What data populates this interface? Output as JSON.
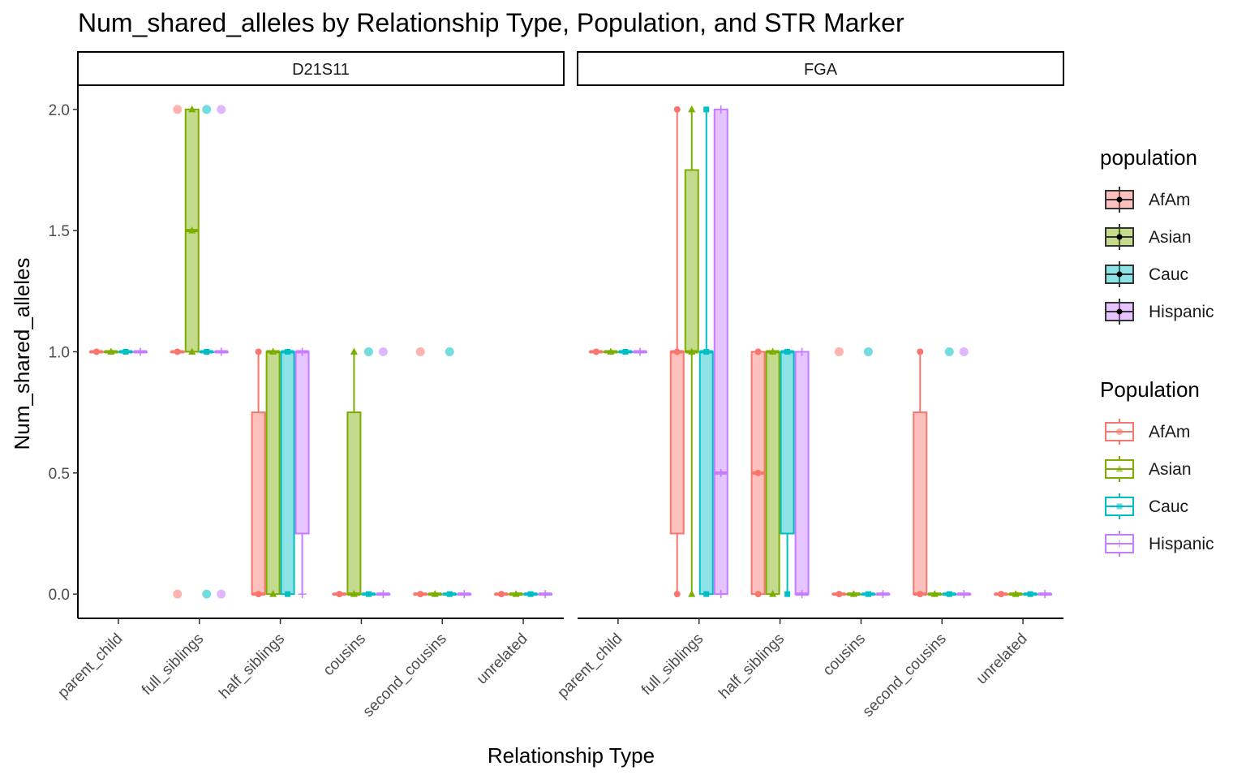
{
  "chart_data": {
    "type": "boxplot",
    "title": "Num_shared_alleles by Relationship Type, Population, and STR Marker",
    "xlabel": "Relationship Type",
    "ylabel": "Num_shared_alleles",
    "ylim": [
      -0.1,
      2.1
    ],
    "y_ticks": [
      "0.0",
      "0.5",
      "1.0",
      "1.5",
      "2.0"
    ],
    "categories": [
      "parent_child",
      "full_siblings",
      "half_siblings",
      "cousins",
      "second_cousins",
      "unrelated"
    ],
    "groups": [
      "AfAm",
      "Asian",
      "Cauc",
      "Hispanic"
    ],
    "colors": {
      "AfAm": "#F8766D",
      "Asian": "#7CAE00",
      "Cauc": "#00BFC4",
      "Hispanic": "#C77CFF"
    },
    "point_shapes": {
      "AfAm": "circle",
      "Asian": "triangle",
      "Cauc": "square",
      "Hispanic": "plus"
    },
    "legend_position": "right",
    "legends": [
      {
        "title": "population",
        "items": [
          "AfAm",
          "Asian",
          "Cauc",
          "Hispanic"
        ],
        "style": "fill"
      },
      {
        "title": "Population",
        "items": [
          "AfAm",
          "Asian",
          "Cauc",
          "Hispanic"
        ],
        "style": "color"
      }
    ],
    "panels": [
      {
        "label": "D21S11",
        "boxes": [
          {
            "category": "parent_child",
            "group": "AfAm",
            "min": 1,
            "q1": 1,
            "median": 1,
            "q3": 1,
            "max": 1,
            "outliers": []
          },
          {
            "category": "parent_child",
            "group": "Asian",
            "min": 1,
            "q1": 1,
            "median": 1,
            "q3": 1,
            "max": 1,
            "outliers": []
          },
          {
            "category": "parent_child",
            "group": "Cauc",
            "min": 1,
            "q1": 1,
            "median": 1,
            "q3": 1,
            "max": 1,
            "outliers": []
          },
          {
            "category": "parent_child",
            "group": "Hispanic",
            "min": 1,
            "q1": 1,
            "median": 1,
            "q3": 1,
            "max": 1,
            "outliers": []
          },
          {
            "category": "full_siblings",
            "group": "AfAm",
            "min": 1,
            "q1": 1,
            "median": 1,
            "q3": 1,
            "max": 1,
            "outliers": [
              2,
              0
            ]
          },
          {
            "category": "full_siblings",
            "group": "Asian",
            "min": 1,
            "q1": 1,
            "median": 1.5,
            "q3": 2,
            "max": 2,
            "outliers": []
          },
          {
            "category": "full_siblings",
            "group": "Cauc",
            "min": 1,
            "q1": 1,
            "median": 1,
            "q3": 1,
            "max": 1,
            "outliers": [
              2,
              0
            ]
          },
          {
            "category": "full_siblings",
            "group": "Hispanic",
            "min": 1,
            "q1": 1,
            "median": 1,
            "q3": 1,
            "max": 1,
            "outliers": [
              2,
              0
            ]
          },
          {
            "category": "half_siblings",
            "group": "AfAm",
            "min": 0,
            "q1": 0,
            "median": 0,
            "q3": 0.75,
            "max": 1,
            "outliers": []
          },
          {
            "category": "half_siblings",
            "group": "Asian",
            "min": 0,
            "q1": 0,
            "median": 1,
            "q3": 1,
            "max": 1,
            "outliers": []
          },
          {
            "category": "half_siblings",
            "group": "Cauc",
            "min": 0,
            "q1": 0,
            "median": 1,
            "q3": 1,
            "max": 1,
            "outliers": []
          },
          {
            "category": "half_siblings",
            "group": "Hispanic",
            "min": 0,
            "q1": 0.25,
            "median": 1,
            "q3": 1,
            "max": 1,
            "outliers": []
          },
          {
            "category": "cousins",
            "group": "AfAm",
            "min": 0,
            "q1": 0,
            "median": 0,
            "q3": 0,
            "max": 0,
            "outliers": []
          },
          {
            "category": "cousins",
            "group": "Asian",
            "min": 0,
            "q1": 0,
            "median": 0,
            "q3": 0.75,
            "max": 1,
            "outliers": []
          },
          {
            "category": "cousins",
            "group": "Cauc",
            "min": 0,
            "q1": 0,
            "median": 0,
            "q3": 0,
            "max": 0,
            "outliers": [
              1
            ]
          },
          {
            "category": "cousins",
            "group": "Hispanic",
            "min": 0,
            "q1": 0,
            "median": 0,
            "q3": 0,
            "max": 0,
            "outliers": [
              1
            ]
          },
          {
            "category": "second_cousins",
            "group": "AfAm",
            "min": 0,
            "q1": 0,
            "median": 0,
            "q3": 0,
            "max": 0,
            "outliers": [
              1
            ]
          },
          {
            "category": "second_cousins",
            "group": "Asian",
            "min": 0,
            "q1": 0,
            "median": 0,
            "q3": 0,
            "max": 0,
            "outliers": []
          },
          {
            "category": "second_cousins",
            "group": "Cauc",
            "min": 0,
            "q1": 0,
            "median": 0,
            "q3": 0,
            "max": 0,
            "outliers": [
              1
            ]
          },
          {
            "category": "second_cousins",
            "group": "Hispanic",
            "min": 0,
            "q1": 0,
            "median": 0,
            "q3": 0,
            "max": 0,
            "outliers": []
          },
          {
            "category": "unrelated",
            "group": "AfAm",
            "min": 0,
            "q1": 0,
            "median": 0,
            "q3": 0,
            "max": 0,
            "outliers": []
          },
          {
            "category": "unrelated",
            "group": "Asian",
            "min": 0,
            "q1": 0,
            "median": 0,
            "q3": 0,
            "max": 0,
            "outliers": []
          },
          {
            "category": "unrelated",
            "group": "Cauc",
            "min": 0,
            "q1": 0,
            "median": 0,
            "q3": 0,
            "max": 0,
            "outliers": []
          },
          {
            "category": "unrelated",
            "group": "Hispanic",
            "min": 0,
            "q1": 0,
            "median": 0,
            "q3": 0,
            "max": 0,
            "outliers": []
          }
        ]
      },
      {
        "label": "FGA",
        "boxes": [
          {
            "category": "parent_child",
            "group": "AfAm",
            "min": 1,
            "q1": 1,
            "median": 1,
            "q3": 1,
            "max": 1,
            "outliers": []
          },
          {
            "category": "parent_child",
            "group": "Asian",
            "min": 1,
            "q1": 1,
            "median": 1,
            "q3": 1,
            "max": 1,
            "outliers": []
          },
          {
            "category": "parent_child",
            "group": "Cauc",
            "min": 1,
            "q1": 1,
            "median": 1,
            "q3": 1,
            "max": 1,
            "outliers": []
          },
          {
            "category": "parent_child",
            "group": "Hispanic",
            "min": 1,
            "q1": 1,
            "median": 1,
            "q3": 1,
            "max": 1,
            "outliers": []
          },
          {
            "category": "full_siblings",
            "group": "AfAm",
            "min": 0,
            "q1": 0.25,
            "median": 1,
            "q3": 1,
            "max": 2,
            "outliers": []
          },
          {
            "category": "full_siblings",
            "group": "Asian",
            "min": 0,
            "q1": 1,
            "median": 1,
            "q3": 1.75,
            "max": 2,
            "outliers": []
          },
          {
            "category": "full_siblings",
            "group": "Cauc",
            "min": 0,
            "q1": 0,
            "median": 1,
            "q3": 1,
            "max": 2,
            "outliers": []
          },
          {
            "category": "full_siblings",
            "group": "Hispanic",
            "min": 0,
            "q1": 0,
            "median": 0.5,
            "q3": 2,
            "max": 2,
            "outliers": []
          },
          {
            "category": "half_siblings",
            "group": "AfAm",
            "min": 0,
            "q1": 0,
            "median": 0.5,
            "q3": 1,
            "max": 1,
            "outliers": []
          },
          {
            "category": "half_siblings",
            "group": "Asian",
            "min": 0,
            "q1": 0,
            "median": 1,
            "q3": 1,
            "max": 1,
            "outliers": []
          },
          {
            "category": "half_siblings",
            "group": "Cauc",
            "min": 0,
            "q1": 0.25,
            "median": 1,
            "q3": 1,
            "max": 1,
            "outliers": []
          },
          {
            "category": "half_siblings",
            "group": "Hispanic",
            "min": 0,
            "q1": 0,
            "median": 0,
            "q3": 1,
            "max": 1,
            "outliers": []
          },
          {
            "category": "cousins",
            "group": "AfAm",
            "min": 0,
            "q1": 0,
            "median": 0,
            "q3": 0,
            "max": 0,
            "outliers": [
              1
            ]
          },
          {
            "category": "cousins",
            "group": "Asian",
            "min": 0,
            "q1": 0,
            "median": 0,
            "q3": 0,
            "max": 0,
            "outliers": []
          },
          {
            "category": "cousins",
            "group": "Cauc",
            "min": 0,
            "q1": 0,
            "median": 0,
            "q3": 0,
            "max": 0,
            "outliers": [
              1
            ]
          },
          {
            "category": "cousins",
            "group": "Hispanic",
            "min": 0,
            "q1": 0,
            "median": 0,
            "q3": 0,
            "max": 0,
            "outliers": []
          },
          {
            "category": "second_cousins",
            "group": "AfAm",
            "min": 0,
            "q1": 0,
            "median": 0,
            "q3": 0.75,
            "max": 1,
            "outliers": []
          },
          {
            "category": "second_cousins",
            "group": "Asian",
            "min": 0,
            "q1": 0,
            "median": 0,
            "q3": 0,
            "max": 0,
            "outliers": []
          },
          {
            "category": "second_cousins",
            "group": "Cauc",
            "min": 0,
            "q1": 0,
            "median": 0,
            "q3": 0,
            "max": 0,
            "outliers": [
              1
            ]
          },
          {
            "category": "second_cousins",
            "group": "Hispanic",
            "min": 0,
            "q1": 0,
            "median": 0,
            "q3": 0,
            "max": 0,
            "outliers": [
              1
            ]
          },
          {
            "category": "unrelated",
            "group": "AfAm",
            "min": 0,
            "q1": 0,
            "median": 0,
            "q3": 0,
            "max": 0,
            "outliers": []
          },
          {
            "category": "unrelated",
            "group": "Asian",
            "min": 0,
            "q1": 0,
            "median": 0,
            "q3": 0,
            "max": 0,
            "outliers": []
          },
          {
            "category": "unrelated",
            "group": "Cauc",
            "min": 0,
            "q1": 0,
            "median": 0,
            "q3": 0,
            "max": 0,
            "outliers": []
          },
          {
            "category": "unrelated",
            "group": "Hispanic",
            "min": 0,
            "q1": 0,
            "median": 0,
            "q3": 0,
            "max": 0,
            "outliers": []
          }
        ]
      }
    ]
  }
}
